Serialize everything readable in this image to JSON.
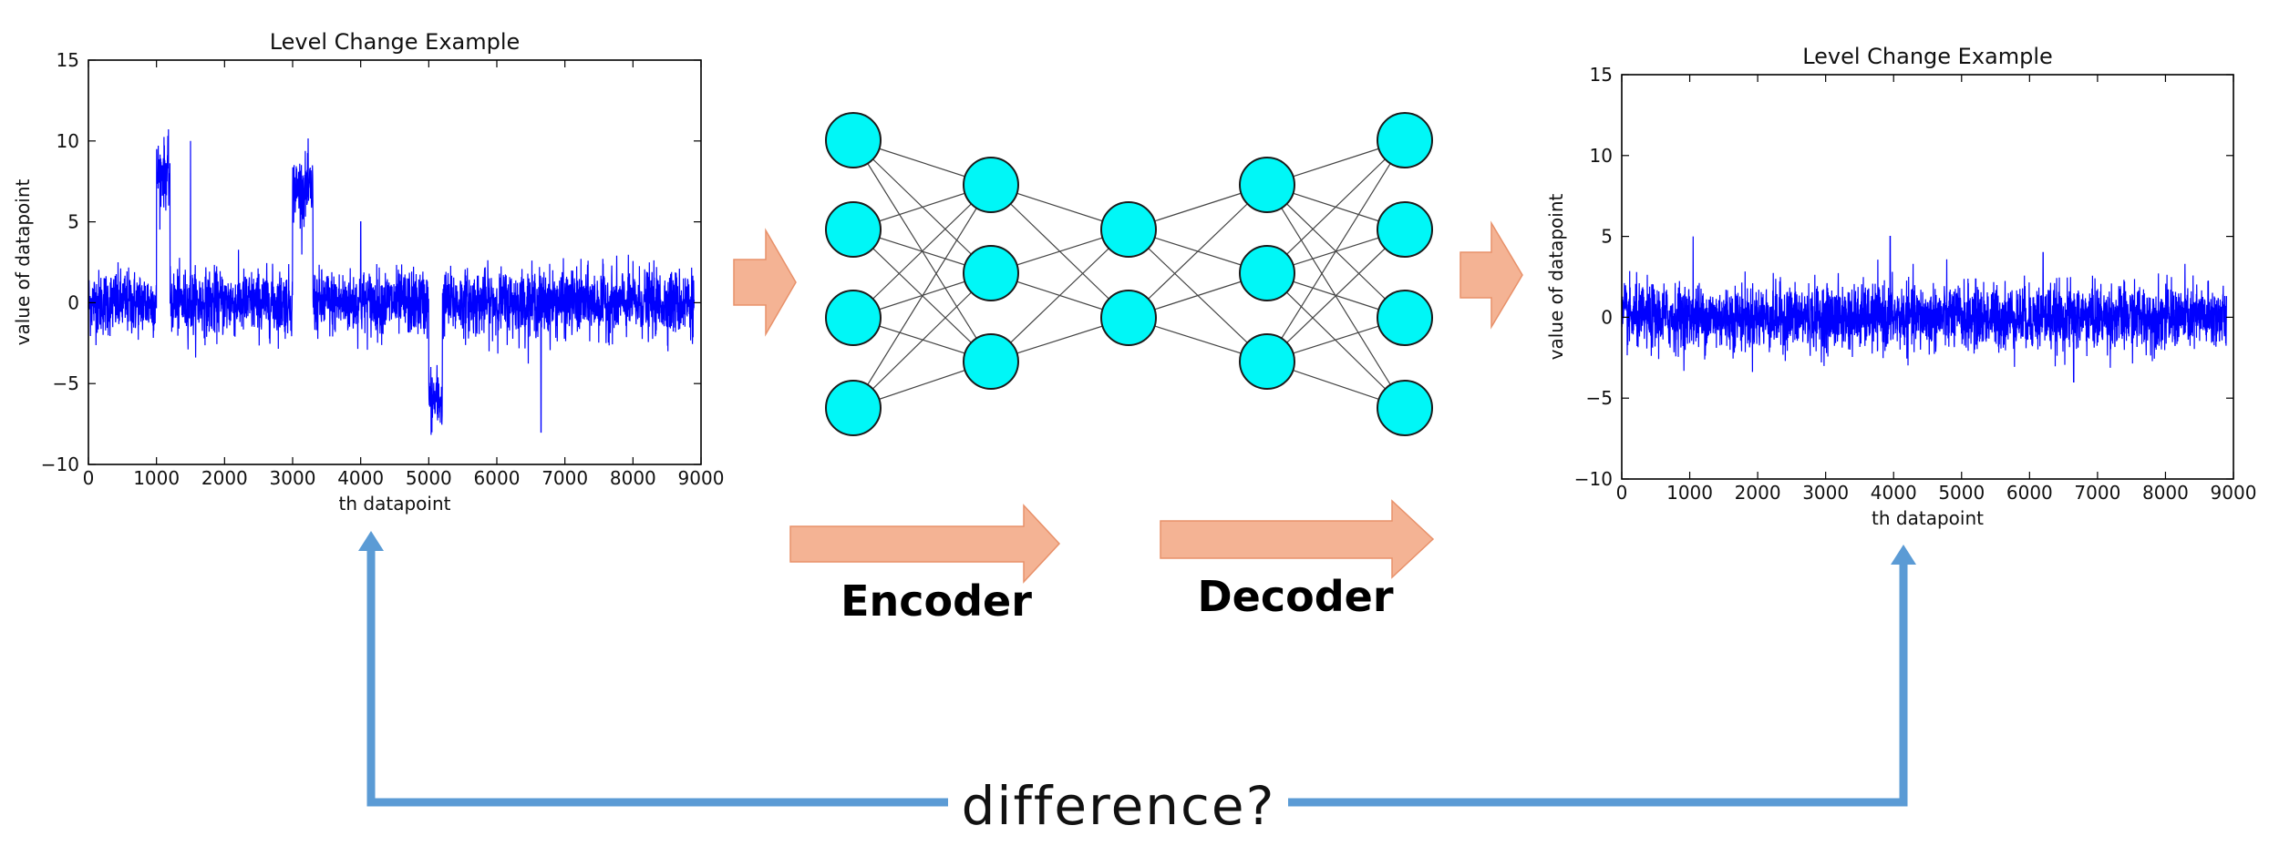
{
  "chart_data": [
    {
      "type": "line",
      "title": "Level Change Example",
      "xlabel": "th datapoint",
      "ylabel": "value of datapoint",
      "xlim": [
        0,
        9000
      ],
      "ylim": [
        -10,
        15
      ],
      "xticks": [
        "0",
        "1000",
        "2000",
        "3000",
        "4000",
        "5000",
        "6000",
        "7000",
        "8000",
        "9000"
      ],
      "yticks": [
        "15",
        "10",
        "5",
        "0",
        "−5",
        "−10"
      ],
      "color": "#0000ff",
      "n_points": 8900,
      "segments": [
        {
          "x": [
            0,
            1000
          ],
          "level": 0
        },
        {
          "x": [
            1000,
            1200
          ],
          "level": 8
        },
        {
          "x": [
            1200,
            3000
          ],
          "level": 0
        },
        {
          "x": [
            3000,
            3300
          ],
          "level": 7
        },
        {
          "x": [
            3300,
            5000
          ],
          "level": 0
        },
        {
          "x": [
            5000,
            5200
          ],
          "level": -6
        },
        {
          "x": [
            5200,
            8900
          ],
          "level": 0
        }
      ],
      "spikes": [
        {
          "x": 1500,
          "y": 10
        },
        {
          "x": 4000,
          "y": 5
        },
        {
          "x": 6650,
          "y": -8
        }
      ]
    },
    {
      "type": "line",
      "title": "Level Change Example",
      "xlabel": "th datapoint",
      "ylabel": "value of datapoint",
      "xlim": [
        0,
        9000
      ],
      "ylim": [
        -10,
        15
      ],
      "xticks": [
        "0",
        "1000",
        "2000",
        "3000",
        "4000",
        "5000",
        "6000",
        "7000",
        "8000",
        "9000"
      ],
      "yticks": [
        "15",
        "10",
        "5",
        "0",
        "−5",
        "−10"
      ],
      "color": "#0000ff",
      "n_points": 8900,
      "segments": [
        {
          "x": [
            0,
            8900
          ],
          "level": 0
        }
      ],
      "spikes": [
        {
          "x": 1050,
          "y": 5
        },
        {
          "x": 3950,
          "y": 5
        },
        {
          "x": 6200,
          "y": 4
        },
        {
          "x": 6650,
          "y": -4
        }
      ]
    }
  ],
  "network": {
    "layers": [
      4,
      3,
      2,
      3,
      4
    ],
    "node_color": "#00f7f7",
    "edge_color": "#444444"
  },
  "labels": {
    "encoder": "Encoder",
    "decoder": "Decoder",
    "difference": "difference?"
  },
  "colors": {
    "arrow_fill": "#f4b394",
    "arrow_stroke": "#e8916a",
    "connector": "#5b9bd5"
  }
}
